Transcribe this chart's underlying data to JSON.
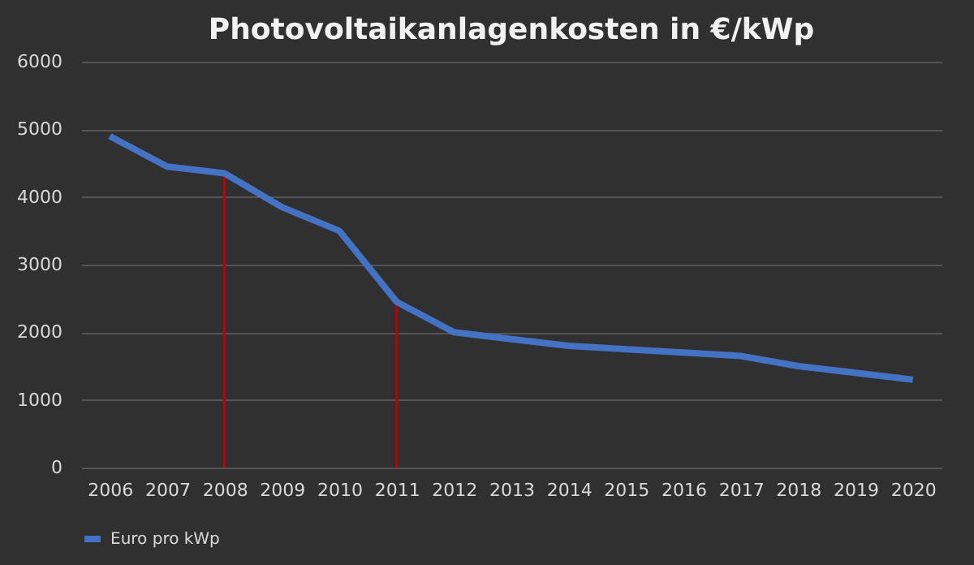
{
  "chart_data": {
    "type": "line",
    "title": "Photovoltaikanlagenkosten in €/kWp",
    "categories": [
      "2006",
      "2007",
      "2008",
      "2009",
      "2010",
      "2011",
      "2012",
      "2013",
      "2014",
      "2015",
      "2016",
      "2017",
      "2018",
      "2019",
      "2020"
    ],
    "series": [
      {
        "name": "Euro pro kWp",
        "color": "#4472c4",
        "values": [
          4900,
          4450,
          4350,
          3850,
          3500,
          2450,
          2000,
          1900,
          1800,
          1750,
          1700,
          1650,
          1500,
          1400,
          1300
        ]
      }
    ],
    "ylim": [
      0,
      6000
    ],
    "yticks": [
      0,
      1000,
      2000,
      3000,
      4000,
      5000,
      6000
    ],
    "grid": "y",
    "legend": "bottom",
    "marker": "none",
    "line_style": "solid",
    "ref_lines": [
      {
        "axis": "x",
        "value": "2008",
        "color": "#c00000"
      },
      {
        "axis": "x",
        "value": "2011",
        "color": "#c00000"
      }
    ]
  }
}
